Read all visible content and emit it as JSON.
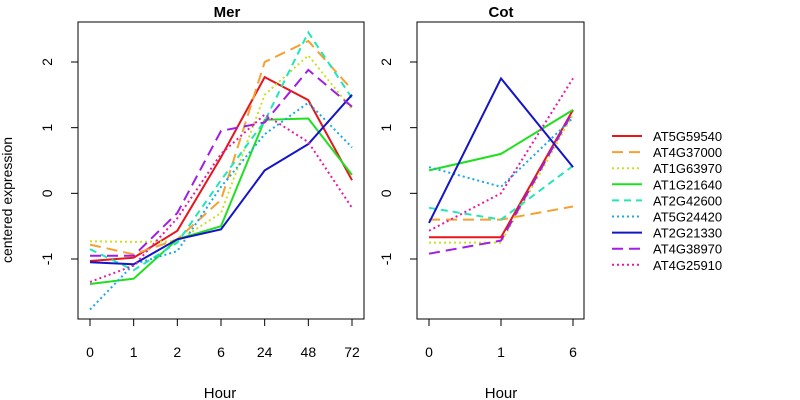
{
  "chart_data": [
    {
      "type": "line",
      "title": "Mer",
      "xlabel": "Hour",
      "ylabel": "centered expression",
      "categories": [
        "0",
        "1",
        "2",
        "6",
        "24",
        "48",
        "72"
      ],
      "ylim": [
        -1.9,
        2.5
      ],
      "yticks": [
        -1,
        0,
        1,
        2
      ],
      "series": [
        {
          "name": "AT5G59540",
          "color": "#e6161a",
          "dash": "solid",
          "values": [
            -1.03,
            -0.98,
            -0.57,
            0.55,
            1.77,
            1.42,
            0.2
          ]
        },
        {
          "name": "AT4G37000",
          "color": "#f7a030",
          "dash": "long-dash",
          "values": [
            -0.78,
            -0.93,
            -0.7,
            -0.1,
            2.0,
            2.32,
            1.58
          ]
        },
        {
          "name": "AT1G63970",
          "color": "#c8e21e",
          "dash": "dotted",
          "values": [
            -0.73,
            -0.74,
            -0.73,
            -0.3,
            1.5,
            2.1,
            1.28
          ]
        },
        {
          "name": "AT1G21640",
          "color": "#1fe01f",
          "dash": "solid",
          "values": [
            -1.38,
            -1.3,
            -0.7,
            -0.5,
            1.12,
            1.14,
            0.28
          ]
        },
        {
          "name": "AT2G42600",
          "color": "#20e6b8",
          "dash": "dashed",
          "values": [
            -0.85,
            -1.17,
            -0.75,
            0.2,
            1.1,
            2.45,
            1.45
          ]
        },
        {
          "name": "AT5G24420",
          "color": "#1aa8e6",
          "dash": "dotted",
          "values": [
            -1.77,
            -1.08,
            -0.88,
            0.1,
            0.9,
            1.38,
            0.7
          ]
        },
        {
          "name": "AT2G21330",
          "color": "#1414c8",
          "dash": "solid",
          "values": [
            -1.05,
            -1.08,
            -0.7,
            -0.55,
            0.35,
            0.75,
            1.5
          ]
        },
        {
          "name": "AT4G38970",
          "color": "#a01ee6",
          "dash": "long-dash",
          "values": [
            -0.95,
            -0.95,
            -0.3,
            0.95,
            1.08,
            1.88,
            1.32
          ]
        },
        {
          "name": "AT4G25910",
          "color": "#e61aa8",
          "dash": "dotted",
          "values": [
            -1.35,
            -1.1,
            -0.38,
            0.6,
            1.2,
            0.78,
            -0.22
          ]
        }
      ]
    },
    {
      "type": "line",
      "title": "Cot",
      "xlabel": "Hour",
      "ylabel": "",
      "categories": [
        "0",
        "1",
        "6"
      ],
      "ylim": [
        -1.9,
        2.5
      ],
      "yticks": [
        -1,
        0,
        1,
        2
      ],
      "series": [
        {
          "name": "AT5G59540",
          "color": "#e6161a",
          "dash": "solid",
          "values": [
            -0.67,
            -0.67,
            1.27
          ]
        },
        {
          "name": "AT4G37000",
          "color": "#f7a030",
          "dash": "long-dash",
          "values": [
            -0.4,
            -0.4,
            -0.2
          ]
        },
        {
          "name": "AT1G63970",
          "color": "#c8e21e",
          "dash": "dotted",
          "values": [
            -0.75,
            -0.75,
            1.2
          ]
        },
        {
          "name": "AT1G21640",
          "color": "#1fe01f",
          "dash": "solid",
          "values": [
            0.35,
            0.6,
            1.27
          ]
        },
        {
          "name": "AT2G42600",
          "color": "#20e6b8",
          "dash": "dashed",
          "values": [
            -0.22,
            -0.4,
            0.42
          ]
        },
        {
          "name": "AT5G24420",
          "color": "#1aa8e6",
          "dash": "dotted",
          "values": [
            0.4,
            0.1,
            1.15
          ]
        },
        {
          "name": "AT2G21330",
          "color": "#1414c8",
          "dash": "solid",
          "values": [
            -0.45,
            1.75,
            0.4
          ]
        },
        {
          "name": "AT4G38970",
          "color": "#a01ee6",
          "dash": "long-dash",
          "values": [
            -0.92,
            -0.72,
            1.25
          ]
        },
        {
          "name": "AT4G25910",
          "color": "#e61aa8",
          "dash": "dotted",
          "values": [
            -0.57,
            0.0,
            1.75
          ]
        }
      ]
    }
  ],
  "legend": {
    "placement": "right",
    "items": [
      "AT5G59540",
      "AT4G37000",
      "AT1G63970",
      "AT1G21640",
      "AT2G42600",
      "AT5G24420",
      "AT2G21330",
      "AT4G38970",
      "AT4G25910"
    ]
  }
}
